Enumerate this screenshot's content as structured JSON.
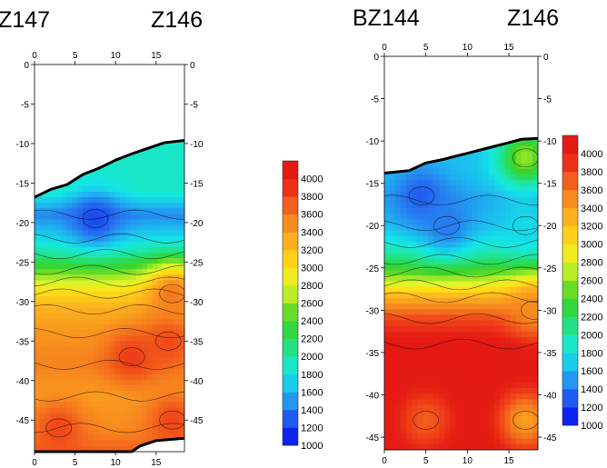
{
  "chart_data": [
    {
      "type": "heatmap",
      "well_left": "Z147",
      "well_right": "Z146",
      "x_ticks": [
        0,
        5,
        10,
        15
      ],
      "y_ticks": [
        0,
        -5,
        -10,
        -15,
        -20,
        -25,
        -30,
        -35,
        -40,
        -45
      ],
      "xlim": [
        0,
        18.5
      ],
      "ylim": [
        -49,
        0
      ],
      "colorbar_ticks": [
        1000,
        1200,
        1400,
        1600,
        1800,
        2000,
        2200,
        2400,
        2600,
        2800,
        3000,
        3200,
        3400,
        3600,
        3800,
        4000
      ],
      "colorbar_range": [
        1000,
        4200
      ],
      "colorbar_placement": "right-of-panel",
      "top_surface": [
        [
          0,
          -16.8
        ],
        [
          2,
          -15.8
        ],
        [
          4,
          -15.2
        ],
        [
          6,
          -13.9
        ],
        [
          8,
          -13.1
        ],
        [
          10,
          -12.1
        ],
        [
          12,
          -11.3
        ],
        [
          14,
          -10.6
        ],
        [
          16,
          -9.9
        ],
        [
          18.5,
          -9.6
        ]
      ],
      "bottom_surface": [
        [
          0,
          -49
        ],
        [
          12,
          -49
        ],
        [
          13,
          -48.3
        ],
        [
          15,
          -47.6
        ],
        [
          18.5,
          -47.3
        ]
      ],
      "layers": [
        {
          "y": -16,
          "value": 1900
        },
        {
          "y": -19,
          "value": 1450
        },
        {
          "y": -22,
          "value": 1750
        },
        {
          "y": -24,
          "value": 2050
        },
        {
          "y": -26,
          "value": 2450
        },
        {
          "y": -27.5,
          "value": 2750
        },
        {
          "y": -29,
          "value": 3050
        },
        {
          "y": -31,
          "value": 3300
        },
        {
          "y": -34,
          "value": 3450
        },
        {
          "y": -38,
          "value": 3550
        },
        {
          "y": -42,
          "value": 3400
        },
        {
          "y": -46,
          "value": 3500
        },
        {
          "y": -49,
          "value": 3700
        }
      ],
      "anomalies": [
        {
          "x": 7.5,
          "y": -19.5,
          "value": 1250
        },
        {
          "x": 12,
          "y": -37,
          "value": 3850
        },
        {
          "x": 16.5,
          "y": -35,
          "value": 3800
        },
        {
          "x": 3,
          "y": -46,
          "value": 3800
        },
        {
          "x": 17,
          "y": -45,
          "value": 3800
        },
        {
          "x": 17,
          "y": -29,
          "value": 3600
        }
      ]
    },
    {
      "type": "heatmap",
      "well_left": "BZ144",
      "well_right": "Z146",
      "x_ticks": [
        0,
        5,
        10,
        15
      ],
      "y_ticks": [
        0,
        -5,
        -10,
        -15,
        -20,
        -25,
        -30,
        -35,
        -40,
        -45
      ],
      "xlim": [
        0,
        18.5
      ],
      "ylim": [
        -46.5,
        0
      ],
      "colorbar_ticks": [
        1000,
        1200,
        1400,
        1600,
        1800,
        2000,
        2200,
        2400,
        2600,
        2800,
        3000,
        3200,
        3400,
        3600,
        3800,
        4000
      ],
      "colorbar_range": [
        1000,
        4200
      ],
      "colorbar_placement": "right-of-panel",
      "top_surface": [
        [
          0,
          -13.8
        ],
        [
          3,
          -13.5
        ],
        [
          5,
          -12.6
        ],
        [
          7,
          -12.2
        ],
        [
          9,
          -11.7
        ],
        [
          11,
          -11.2
        ],
        [
          13,
          -10.7
        ],
        [
          15,
          -10.2
        ],
        [
          16.5,
          -9.8
        ],
        [
          18.5,
          -9.7
        ]
      ],
      "bottom_surface": [
        [
          0,
          -46.5
        ],
        [
          18.5,
          -46.5
        ]
      ],
      "layers": [
        {
          "y": -14,
          "value": 1650
        },
        {
          "y": -17,
          "value": 1550
        },
        {
          "y": -20,
          "value": 1650
        },
        {
          "y": -22,
          "value": 1850
        },
        {
          "y": -24,
          "value": 2150
        },
        {
          "y": -25.5,
          "value": 2450
        },
        {
          "y": -27,
          "value": 2850
        },
        {
          "y": -28.5,
          "value": 3300
        },
        {
          "y": -31,
          "value": 3800
        },
        {
          "y": -34,
          "value": 4100
        },
        {
          "y": -46.5,
          "value": 4100
        }
      ],
      "anomalies": [
        {
          "x": 4.5,
          "y": -16.5,
          "value": 1300
        },
        {
          "x": 7.5,
          "y": -20,
          "value": 1400
        },
        {
          "x": 17,
          "y": -12,
          "value": 2600
        },
        {
          "x": 17,
          "y": -20,
          "value": 1750
        },
        {
          "x": 18,
          "y": -30,
          "value": 3500
        },
        {
          "x": 17,
          "y": -43,
          "value": 3400
        },
        {
          "x": 5,
          "y": -43,
          "value": 3700
        }
      ]
    }
  ]
}
